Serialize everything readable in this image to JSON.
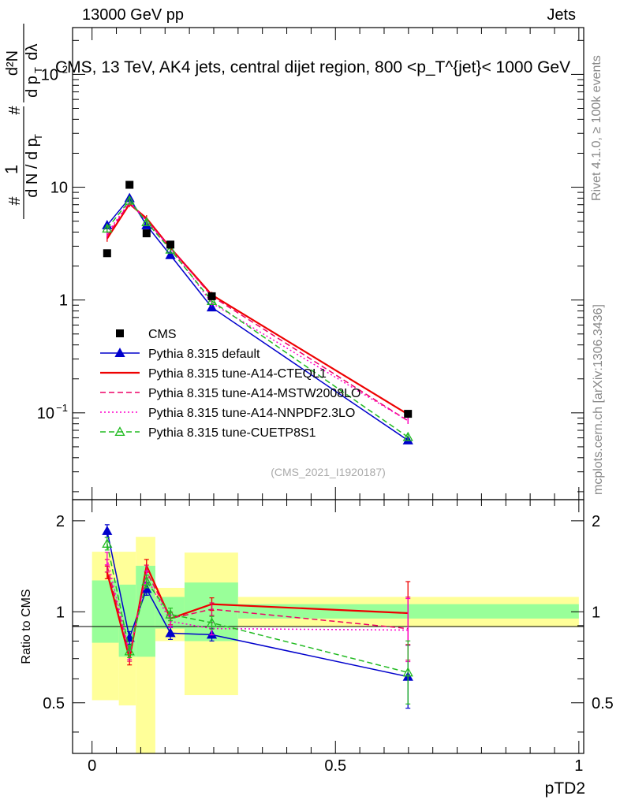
{
  "header": {
    "left": "13000 GeV pp",
    "right": "Jets",
    "side_top": "Rivet 4.1.0, ≥ 100k events",
    "side_bottom": "mcplots.cern.ch [arXiv:1306.3436]"
  },
  "colors": {
    "cms": "#000000",
    "default": "#0000cc",
    "cteql1": "#ee0000",
    "mstw": "#ee0066",
    "nnpdf": "#ff00cc",
    "cuetp8s1": "#22bb22",
    "band_yellow": "#ffff99",
    "band_green": "#99ff99"
  },
  "chart_data": [
    {
      "type": "line",
      "panel": "main",
      "title": "CMS, 13 TeV, AK4 jets, central dijet region, 800 <p_T^{jet}< 1000 GeV",
      "ylabel": "1/(dN/dp_T) d²N/(dp_T dλ)",
      "ylabel_parts": [
        "#",
        "1",
        "d N / d p",
        "T",
        "#",
        "d p",
        "T",
        "d²N",
        "dλ"
      ],
      "yscale": "log",
      "ylim": [
        0.017,
        260
      ],
      "xlim": [
        -0.04,
        1.01
      ],
      "yticks": [
        {
          "value": 0.1,
          "label": "10⁻¹"
        },
        {
          "value": 1,
          "label": "1"
        },
        {
          "value": 10,
          "label": "10"
        },
        {
          "value": 100,
          "label": "10²"
        }
      ],
      "watermark": "(CMS_2021_I1920187)",
      "cms": {
        "name": "CMS",
        "x": [
          0.031,
          0.077,
          0.112,
          0.161,
          0.246,
          0.649
        ],
        "y": [
          2.6,
          10.5,
          3.9,
          3.1,
          1.08,
          0.098
        ]
      },
      "series": [
        {
          "key": "default",
          "name": "Pythia 8.315 default",
          "style": "solid",
          "marker": "triangle-filled",
          "x": [
            0.031,
            0.077,
            0.112,
            0.161,
            0.246,
            0.649
          ],
          "y": [
            4.6,
            8.0,
            4.6,
            2.5,
            0.86,
            0.057
          ]
        },
        {
          "key": "cteql1",
          "name": "Pythia 8.315 tune-A14-CTEQL1",
          "style": "solid",
          "marker": "none",
          "x": [
            0.031,
            0.077,
            0.112,
            0.161,
            0.246,
            0.649
          ],
          "y": [
            3.5,
            7.1,
            5.3,
            2.9,
            1.11,
            0.097
          ]
        },
        {
          "key": "mstw",
          "name": "Pythia 8.315 tune-A14-MSTW2008LO",
          "style": "dashed",
          "marker": "none",
          "x": [
            0.031,
            0.077,
            0.112,
            0.161,
            0.246,
            0.649
          ],
          "y": [
            3.7,
            7.3,
            5.1,
            2.9,
            1.08,
            0.085
          ]
        },
        {
          "key": "nnpdf",
          "name": "Pythia 8.315 tune-A14-NNPDF2.3LO",
          "style": "dotted",
          "marker": "none",
          "x": [
            0.031,
            0.077,
            0.112,
            0.161,
            0.246,
            0.649
          ],
          "y": [
            3.9,
            7.4,
            5.0,
            2.9,
            0.94,
            0.085
          ]
        },
        {
          "key": "cuetp8s1",
          "name": "Pythia 8.315 tune-CUETP8S1",
          "style": "dashed",
          "marker": "triangle-open",
          "x": [
            0.031,
            0.077,
            0.112,
            0.161,
            0.246,
            0.649
          ],
          "y": [
            4.3,
            7.6,
            4.9,
            2.8,
            0.98,
            0.061
          ]
        }
      ]
    },
    {
      "type": "line",
      "panel": "ratio",
      "ylabel": "Ratio to CMS",
      "xlabel": "pTD2",
      "yscale": "log",
      "ylim": [
        0.34,
        2.35
      ],
      "xlim": [
        -0.04,
        1.01
      ],
      "yticks": [
        {
          "value": 0.5,
          "label": "0.5"
        },
        {
          "value": 1,
          "label": "1"
        },
        {
          "value": 2,
          "label": "2"
        }
      ],
      "xticks": [
        {
          "value": 0,
          "label": "0"
        },
        {
          "value": 0.5,
          "label": "0.5"
        },
        {
          "value": 1,
          "label": "1"
        }
      ],
      "bins": [
        {
          "lo": 0.0,
          "hi": 0.055,
          "green": [
            0.79,
            1.27
          ],
          "yellow": [
            0.51,
            1.58
          ]
        },
        {
          "lo": 0.055,
          "hi": 0.09,
          "green": [
            0.71,
            1.23
          ],
          "yellow": [
            0.49,
            1.58
          ]
        },
        {
          "lo": 0.09,
          "hi": 0.13,
          "green": [
            0.71,
            1.42
          ],
          "yellow": [
            0.3,
            1.77
          ]
        },
        {
          "lo": 0.13,
          "hi": 0.19,
          "green": [
            0.88,
            1.12
          ],
          "yellow": [
            0.8,
            1.2
          ]
        },
        {
          "lo": 0.19,
          "hi": 0.3,
          "green": [
            0.8,
            1.25
          ],
          "yellow": [
            0.53,
            1.57
          ]
        },
        {
          "lo": 0.3,
          "hi": 1.0,
          "green": [
            0.95,
            1.06
          ],
          "yellow": [
            0.89,
            1.12
          ]
        }
      ],
      "series": [
        {
          "key": "default",
          "style": "solid",
          "marker": "triangle-filled",
          "x": [
            0.031,
            0.077,
            0.112,
            0.161,
            0.246,
            0.649
          ],
          "y": [
            1.85,
            0.82,
            1.19,
            0.85,
            0.84,
            0.61
          ]
        },
        {
          "key": "cteql1",
          "style": "solid",
          "marker": "none",
          "x": [
            0.031,
            0.077,
            0.112,
            0.161,
            0.246,
            0.649
          ],
          "y": [
            1.35,
            0.7,
            1.42,
            0.95,
            1.06,
            0.99
          ]
        },
        {
          "key": "mstw",
          "style": "dashed",
          "marker": "none",
          "x": [
            0.031,
            0.077,
            0.112,
            0.161,
            0.246,
            0.649
          ],
          "y": [
            1.42,
            0.72,
            1.36,
            0.95,
            1.02,
            0.88
          ]
        },
        {
          "key": "nnpdf",
          "style": "dotted",
          "marker": "none",
          "x": [
            0.031,
            0.077,
            0.112,
            0.161,
            0.246,
            0.649
          ],
          "y": [
            1.5,
            0.73,
            1.3,
            0.93,
            0.88,
            0.87
          ]
        },
        {
          "key": "cuetp8s1",
          "style": "dashed",
          "marker": "triangle-open",
          "x": [
            0.031,
            0.077,
            0.112,
            0.161,
            0.246,
            0.649
          ],
          "y": [
            1.68,
            0.74,
            1.26,
            0.98,
            0.92,
            0.63
          ]
        }
      ]
    }
  ]
}
